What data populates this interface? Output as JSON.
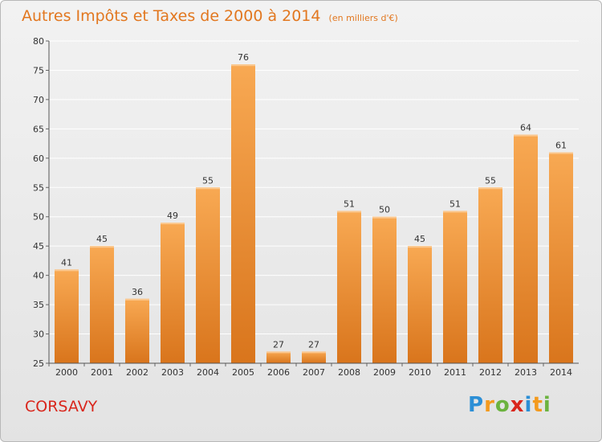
{
  "header": {
    "title": "Autres Impôts et Taxes de 2000 à 2014",
    "subtitle": "(en milliers d'€)"
  },
  "footer": {
    "commune": "CORSAVY",
    "logo_letters": [
      "P",
      "r",
      "o",
      "x",
      "i",
      "t",
      "i"
    ]
  },
  "colors": {
    "bar_light": "#f8a953",
    "bar_dark": "#d9751c",
    "title": "#e2771f",
    "commune": "#d9261c"
  },
  "chart_data": {
    "type": "bar",
    "categories": [
      "2000",
      "2001",
      "2002",
      "2003",
      "2004",
      "2005",
      "2006",
      "2007",
      "2008",
      "2009",
      "2010",
      "2011",
      "2012",
      "2013",
      "2014"
    ],
    "values": [
      41,
      45,
      36,
      49,
      55,
      76,
      27,
      27,
      51,
      50,
      45,
      51,
      55,
      64,
      61
    ],
    "title": "Autres Impôts et Taxes de 2000 à 2014",
    "ylim": [
      25,
      80
    ],
    "yticks": [
      25,
      30,
      35,
      40,
      45,
      50,
      55,
      60,
      65,
      70,
      75,
      80
    ],
    "grid": true,
    "data_labels": true
  }
}
